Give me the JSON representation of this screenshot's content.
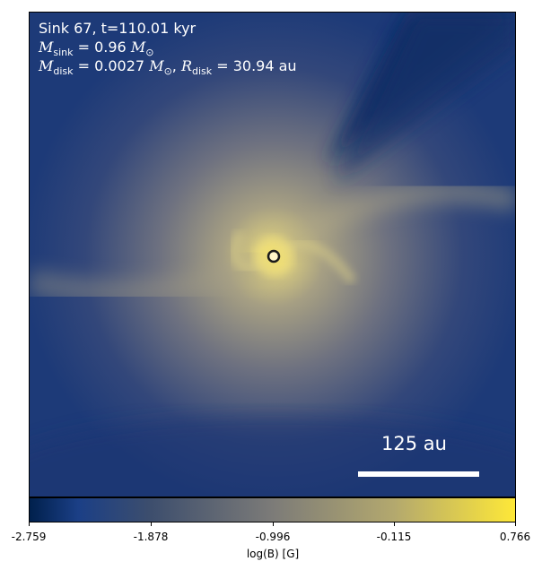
{
  "panel": {
    "title_line": "Sink 67, t=110.01 kyr",
    "sink_mass": {
      "symbol": "M",
      "sub": "sink",
      "rest": " = 0.96 ",
      "unit": "M",
      "unit_sub": "⊙"
    },
    "disk_line": {
      "m_symbol": "M",
      "m_sub": "disk",
      "m_rest": " = 0.0027 ",
      "m_unit": "M",
      "m_unit_sub": "⊙",
      "sep": ", ",
      "r_symbol": "R",
      "r_sub": "disk",
      "r_rest": " = 30.94 au"
    },
    "scale_bar_label": "125 au"
  },
  "colorbar": {
    "label": "log(B) [G]",
    "ticks": [
      "-2.759",
      "-1.878",
      "-0.996",
      "-0.115",
      "0.766"
    ],
    "colors": {
      "low": "#00204c",
      "mid": "#7c7b78",
      "high": "#fee838"
    }
  },
  "colors": {
    "background_field": "#1f3b72",
    "disk_glow": "#c9c08a",
    "sink_fill": "#fff6c8",
    "sink_ring": "#1a1a1a"
  },
  "icons": {
    "sink": "sink-marker-icon"
  }
}
